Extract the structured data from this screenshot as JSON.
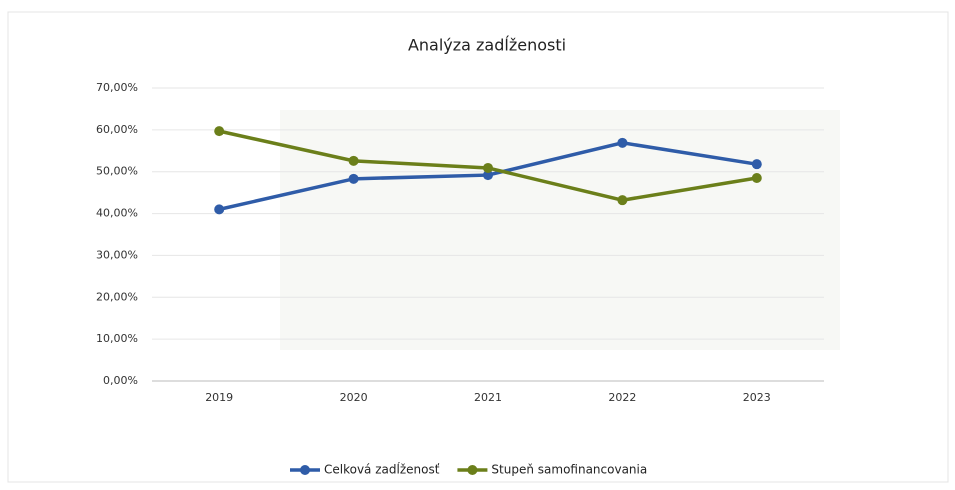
{
  "chart_data": {
    "type": "line",
    "title": "Analýza zadĺženosti",
    "categories": [
      "2019",
      "2020",
      "2021",
      "2022",
      "2023"
    ],
    "series": [
      {
        "name": "Celková zadĺženosť",
        "color": "#2f5ca8",
        "values": [
          41.0,
          48.3,
          49.2,
          56.9,
          51.8
        ]
      },
      {
        "name": "Stupeň samofinancovania",
        "color": "#6b7f1a",
        "values": [
          59.7,
          52.6,
          50.9,
          43.2,
          48.5
        ]
      }
    ],
    "ylim": [
      0,
      70
    ],
    "yticks": [
      {
        "value": 0,
        "label": "0,00%"
      },
      {
        "value": 10,
        "label": "10,00%"
      },
      {
        "value": 20,
        "label": "20,00%"
      },
      {
        "value": 30,
        "label": "30,00%"
      },
      {
        "value": 40,
        "label": "40,00%"
      },
      {
        "value": 50,
        "label": "50,00%"
      },
      {
        "value": 60,
        "label": "60,00%"
      },
      {
        "value": 70,
        "label": "70,00%"
      }
    ],
    "grid": true,
    "legend": "bottom"
  }
}
